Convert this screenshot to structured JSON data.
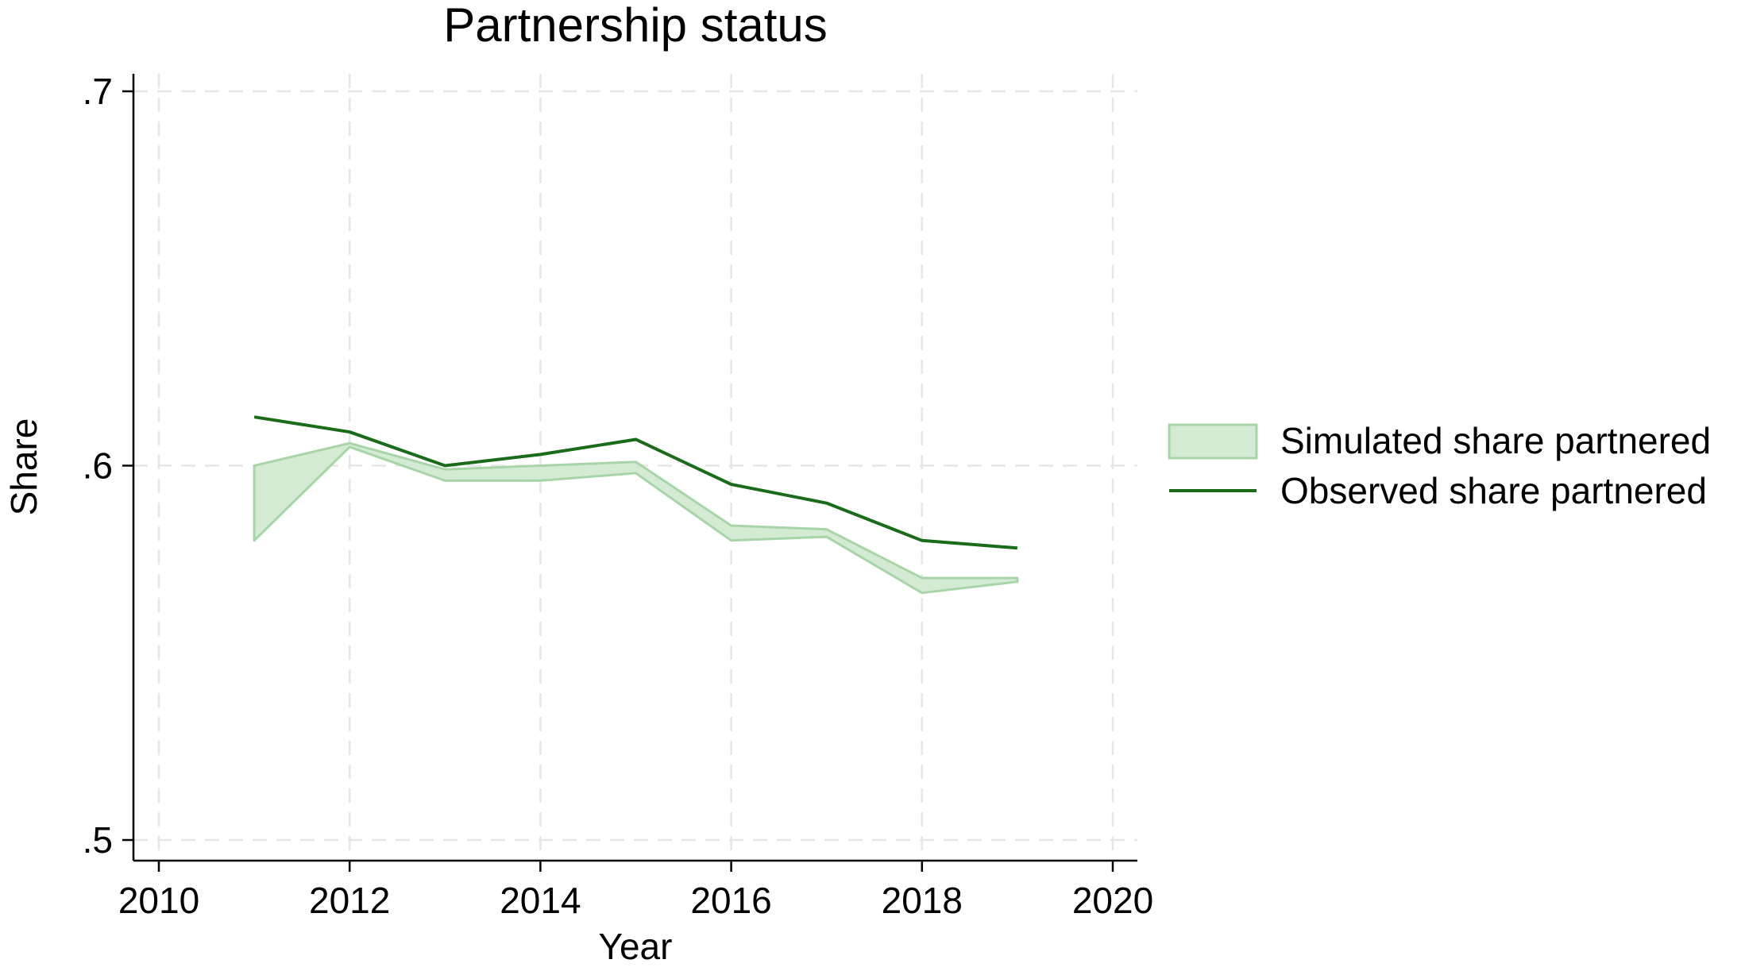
{
  "chart_data": {
    "type": "area",
    "title": "Partnership status",
    "xlabel": "Year",
    "ylabel": "Share",
    "xlim": [
      2010,
      2020
    ],
    "ylim": [
      0.5,
      0.7
    ],
    "xticks": [
      2010,
      2012,
      2014,
      2016,
      2018,
      2020
    ],
    "xtick_labels": [
      "2010",
      "2012",
      "2014",
      "2016",
      "2018",
      "2020"
    ],
    "yticks": [
      0.5,
      0.6,
      0.7
    ],
    "ytick_labels": [
      ".5",
      ".6",
      ".7"
    ],
    "grid": true,
    "legend_position": "right",
    "band": {
      "name": "Simulated share partnered",
      "x": [
        2011,
        2012,
        2013,
        2014,
        2015,
        2016,
        2017,
        2018,
        2019
      ],
      "lower": [
        0.58,
        0.605,
        0.596,
        0.596,
        0.598,
        0.58,
        0.581,
        0.566,
        0.569
      ],
      "upper": [
        0.6,
        0.606,
        0.599,
        0.6,
        0.601,
        0.584,
        0.583,
        0.57,
        0.57
      ],
      "fill_color": "#d3ebd3",
      "edge_color": "#a8d5a8"
    },
    "series": [
      {
        "name": "Observed share partnered",
        "x": [
          2011,
          2012,
          2013,
          2014,
          2015,
          2016,
          2017,
          2018,
          2019
        ],
        "values": [
          0.613,
          0.609,
          0.6,
          0.603,
          0.607,
          0.595,
          0.59,
          0.58,
          0.578
        ],
        "color": "#1a6b1a"
      }
    ]
  }
}
